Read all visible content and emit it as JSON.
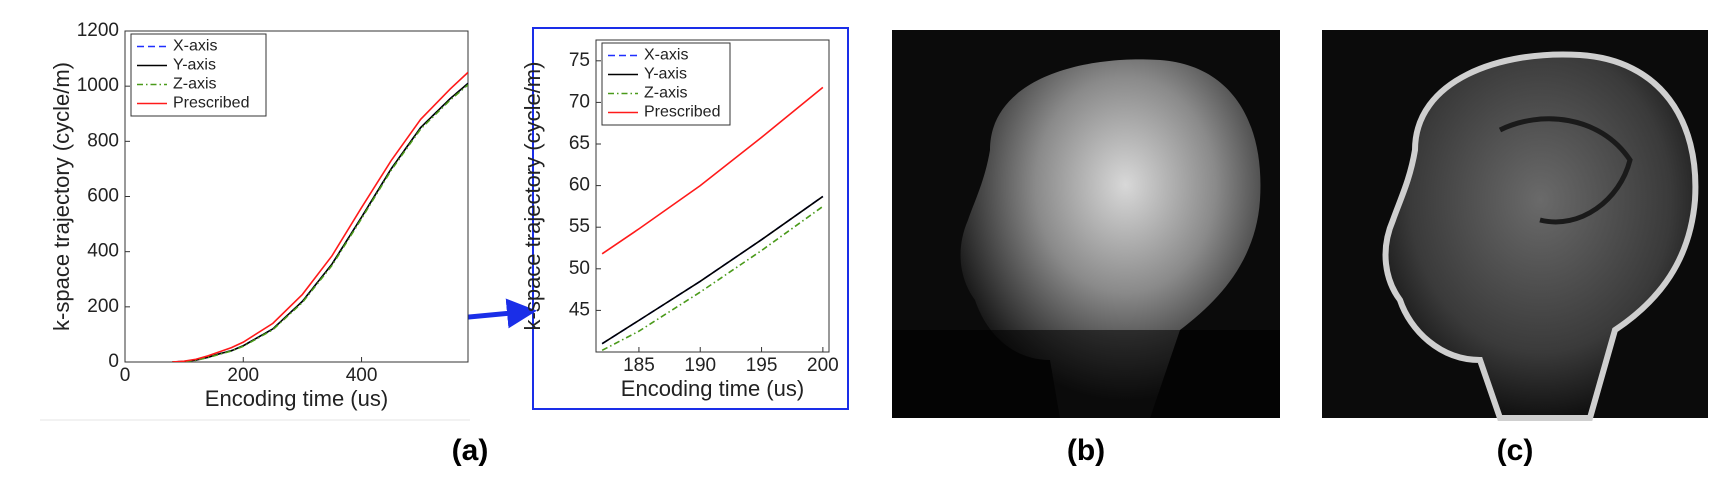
{
  "chart_data": [
    {
      "type": "line",
      "xlabel": "Encoding time (us)",
      "ylabel": "k-space trajectory (cycle/m)",
      "x": [
        80,
        100,
        120,
        140,
        160,
        180,
        200,
        250,
        300,
        350,
        400,
        450,
        500,
        550,
        580
      ],
      "series": [
        {
          "name": "X-axis",
          "color": "#1f2fff",
          "style": "dashed",
          "values": [
            0,
            2,
            7,
            17,
            30,
            41,
            59,
            120,
            220,
            355,
            525,
            700,
            850,
            955,
            1010
          ]
        },
        {
          "name": "Y-axis",
          "color": "#000000",
          "style": "solid",
          "values": [
            0,
            2,
            7,
            17,
            30,
            41,
            59,
            120,
            220,
            355,
            525,
            700,
            850,
            955,
            1010
          ]
        },
        {
          "name": "Z-axis",
          "color": "#4a9a1a",
          "style": "dashdot",
          "values": [
            0,
            1.5,
            6,
            16,
            28,
            40,
            57,
            117,
            216,
            350,
            520,
            695,
            845,
            950,
            1005
          ]
        },
        {
          "name": "Prescribed",
          "color": "#ff1a1a",
          "style": "solid",
          "values": [
            0,
            3,
            10,
            22,
            37,
            52,
            72,
            140,
            245,
            385,
            560,
            730,
            880,
            990,
            1050
          ]
        }
      ],
      "xlim": [
        0,
        580
      ],
      "xticks": [
        0,
        200,
        400
      ],
      "ylim": [
        0,
        1200
      ],
      "yticks": [
        0,
        200,
        400,
        600,
        800,
        1000,
        1200
      ],
      "legend": "upper left"
    },
    {
      "type": "line",
      "xlabel": "Encoding time (us)",
      "ylabel": "k-space trajectory (cycle/m)",
      "x": [
        182,
        185,
        190,
        195,
        200
      ],
      "series": [
        {
          "name": "X-axis",
          "color": "#1f2fff",
          "style": "dashed",
          "values": [
            41.0,
            43.8,
            48.5,
            53.5,
            58.7
          ]
        },
        {
          "name": "Y-axis",
          "color": "#000000",
          "style": "solid",
          "values": [
            41.0,
            43.8,
            48.5,
            53.5,
            58.7
          ]
        },
        {
          "name": "Z-axis",
          "color": "#4a9a1a",
          "style": "dashdot",
          "values": [
            40.2,
            42.5,
            47.2,
            52.2,
            57.5
          ]
        },
        {
          "name": "Prescribed",
          "color": "#ff1a1a",
          "style": "solid",
          "values": [
            51.8,
            54.8,
            60.0,
            65.8,
            71.8
          ]
        }
      ],
      "xlim": [
        181.5,
        200.5
      ],
      "xticks": [
        185,
        190,
        195,
        200
      ],
      "ylim": [
        40,
        77.5
      ],
      "yticks": [
        45,
        50,
        55,
        60,
        65,
        70,
        75
      ],
      "legend": "upper left"
    }
  ],
  "panels": [
    "(a)",
    "(b)",
    "(c)"
  ]
}
